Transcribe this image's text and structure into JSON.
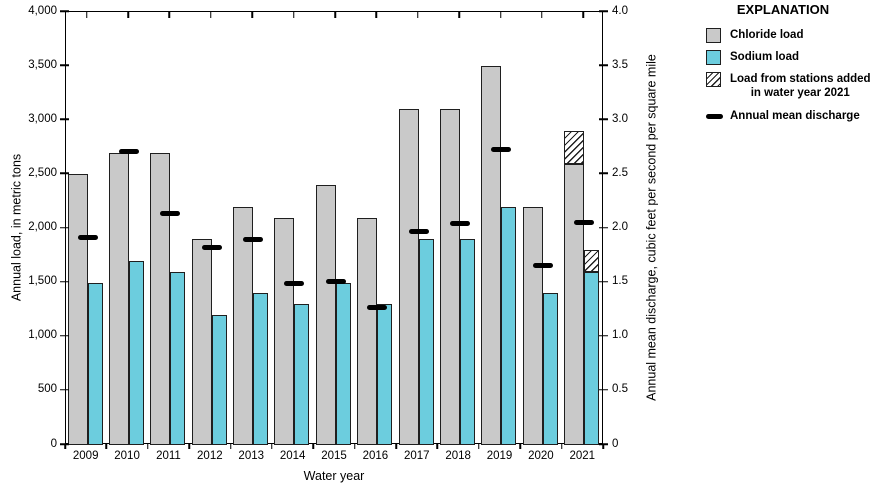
{
  "legend": {
    "title": "EXPLANATION",
    "items": [
      {
        "label": "Chloride load"
      },
      {
        "label": "Sodium load"
      },
      {
        "label_line1": "Load from stations added",
        "label_line2": "in water year 2021"
      },
      {
        "label": "Annual mean discharge"
      }
    ]
  },
  "chart_data": {
    "type": "bar",
    "title": "",
    "x_axis": {
      "title": "Water year",
      "categories": [
        "2009",
        "2010",
        "2011",
        "2012",
        "2013",
        "2014",
        "2015",
        "2016",
        "2017",
        "2018",
        "2019",
        "2020",
        "2021"
      ]
    },
    "left_axis": {
      "title": "Annual load, in metric tons",
      "range": [
        0,
        4000
      ],
      "tick_step": 500,
      "tick_labels": [
        "0",
        "500",
        "1,000",
        "1,500",
        "2,000",
        "2,500",
        "3,000",
        "3,500",
        "4,000"
      ]
    },
    "right_axis": {
      "title": "Annual mean discharge, cubic feet per second per square mile",
      "range": [
        0,
        4.0
      ],
      "tick_step": 0.5,
      "tick_labels": [
        "0",
        "0.5",
        "1.0",
        "1.5",
        "2.0",
        "2.5",
        "3.0",
        "3.5",
        "4.0"
      ]
    },
    "series": [
      {
        "name": "Chloride load",
        "axis": "left",
        "color": "#c9c9c9",
        "values": [
          2500,
          2700,
          2700,
          1900,
          2200,
          2100,
          2400,
          2100,
          3100,
          3100,
          3500,
          2200,
          2600
        ]
      },
      {
        "name": "Sodium load",
        "axis": "left",
        "color": "#6ccdde",
        "values": [
          1500,
          1700,
          1600,
          1200,
          1400,
          1300,
          1500,
          1300,
          1900,
          1900,
          2200,
          1400,
          1600
        ]
      },
      {
        "name": "Load from stations added in water year 2021",
        "axis": "left",
        "pattern": "diagonal-hatch",
        "chloride_added": [
          0,
          0,
          0,
          0,
          0,
          0,
          0,
          0,
          0,
          0,
          0,
          0,
          300
        ],
        "sodium_added": [
          0,
          0,
          0,
          0,
          0,
          0,
          0,
          0,
          0,
          0,
          0,
          0,
          200
        ]
      },
      {
        "name": "Annual mean discharge",
        "axis": "right",
        "marker": "thick-dash",
        "color": "#000000",
        "values": [
          1.92,
          2.71,
          2.14,
          1.82,
          1.9,
          1.49,
          1.51,
          1.27,
          1.97,
          2.05,
          2.73,
          1.66,
          2.06
        ]
      }
    ],
    "layout": {
      "grid": false,
      "legend_position": "right"
    }
  }
}
